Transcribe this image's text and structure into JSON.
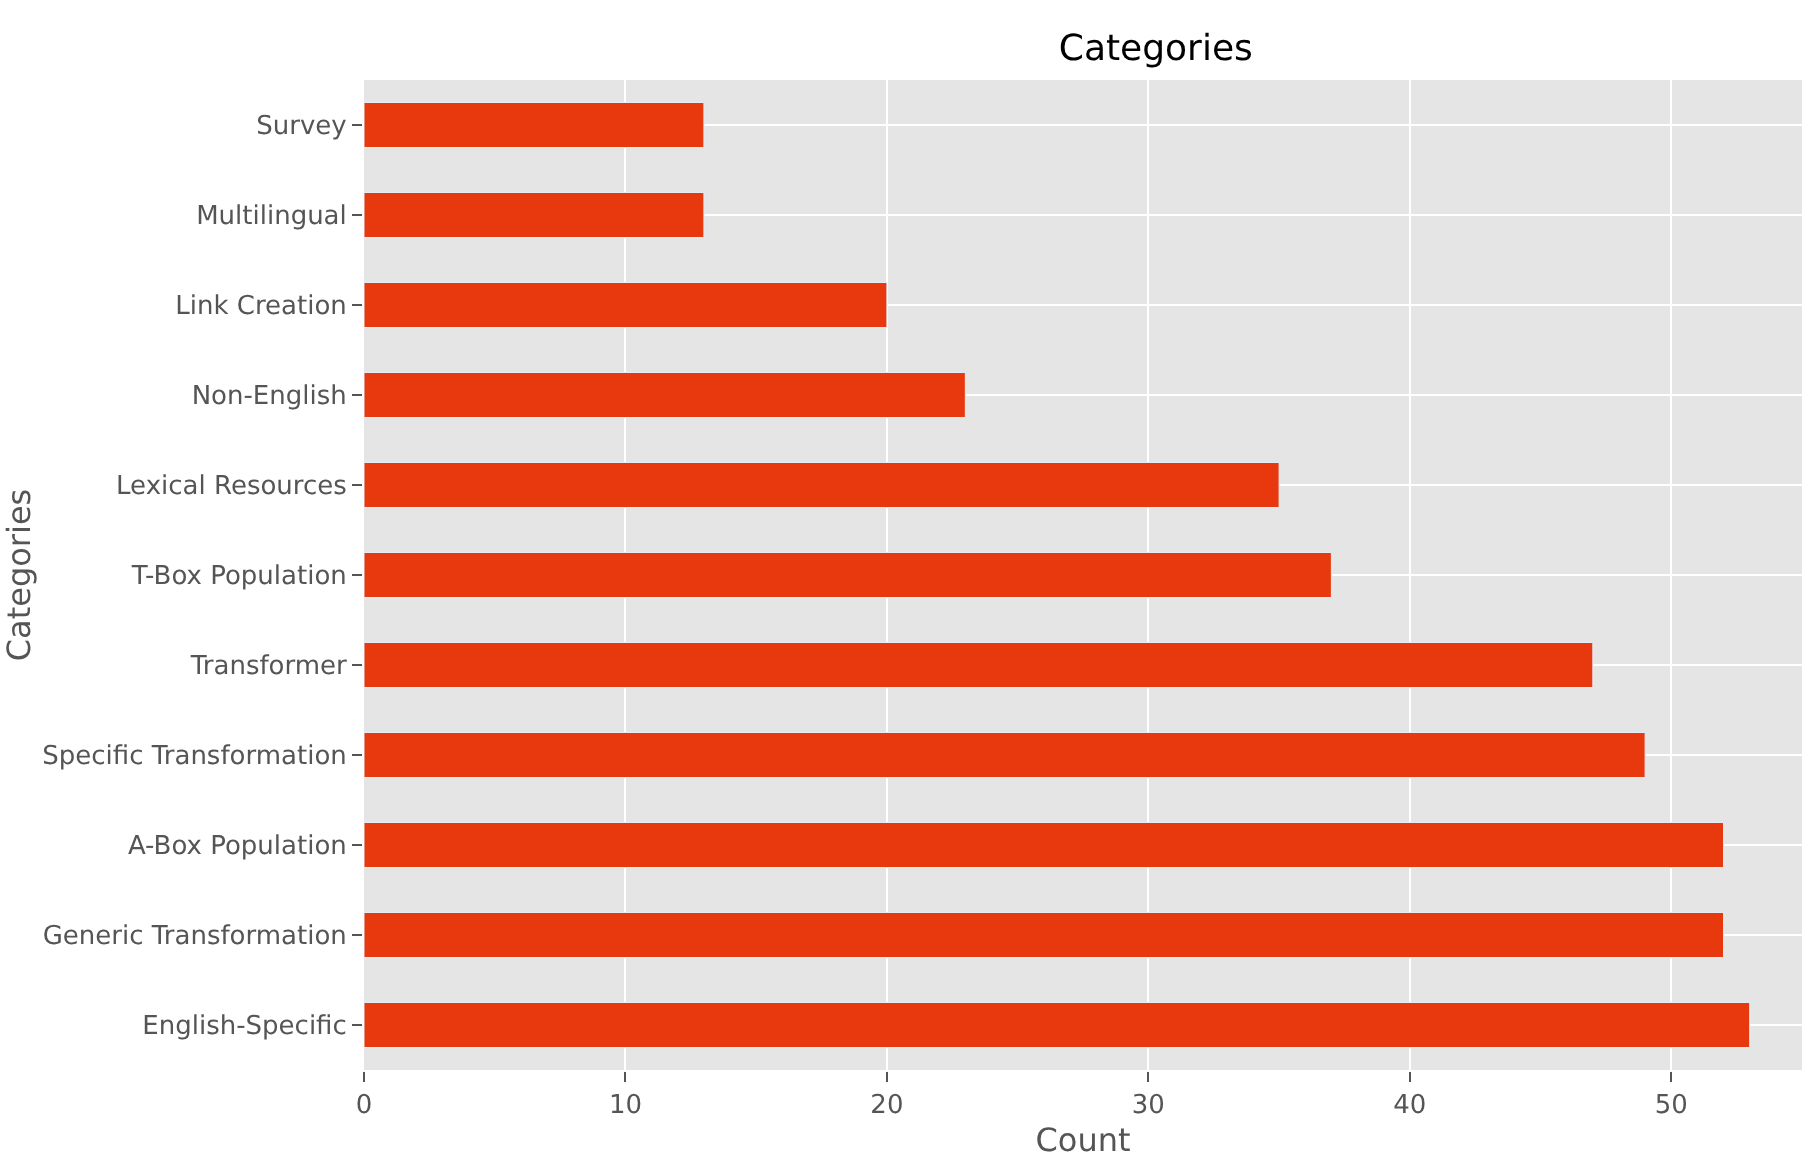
{
  "chart_data": {
    "type": "bar",
    "orientation": "horizontal",
    "title": "Categories",
    "xlabel": "Count",
    "ylabel": "Categories",
    "categories": [
      "Survey",
      "Multilingual",
      "Link Creation",
      "Non-English",
      "Lexical Resources",
      "T-Box Population",
      "Transformer",
      "Specific Transformation",
      "A-Box Population",
      "Generic Transformation",
      "English-Specific"
    ],
    "values": [
      13,
      13,
      20,
      23,
      35,
      37,
      47,
      49,
      52,
      52,
      53
    ],
    "color": "#e8380d",
    "xlim": [
      0,
      55
    ],
    "xticks": [
      0,
      10,
      20,
      30,
      40,
      50
    ],
    "grid": true
  }
}
